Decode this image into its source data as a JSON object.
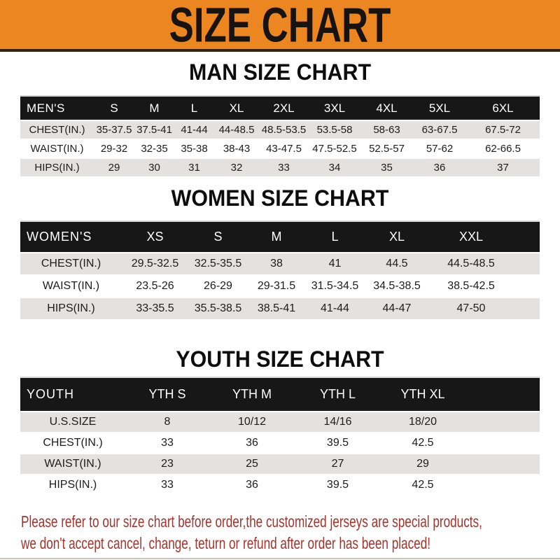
{
  "header": {
    "title": "SIZE CHART"
  },
  "colors": {
    "accent_orange": "#ec8621",
    "banner_border": "#33240f",
    "bar_black": "#171717",
    "row_gray": "#e3e2e0",
    "note_red": "#a5342c"
  },
  "sections": [
    {
      "title": "MAN SIZE CHART",
      "label": "MEN'S",
      "columns": [
        "S",
        "M",
        "L",
        "XL",
        "2XL",
        "3XL",
        "4XL",
        "5XL",
        "6XL"
      ],
      "rows": [
        {
          "label": "CHEST(IN.)",
          "values": [
            "35-37.5",
            "37.5-41",
            "41-44",
            "44-48.5",
            "48.5-53.5",
            "53.5-58",
            "58-63",
            "63-67.5",
            "67.5-72"
          ]
        },
        {
          "label": "WAIST(IN.)",
          "values": [
            "29-32",
            "32-35",
            "35-38",
            "38-43",
            "43-47.5",
            "47.5-52.5",
            "52.5-57",
            "57-62",
            "62-66.5"
          ]
        },
        {
          "label": "HIPS(IN.)",
          "values": [
            "29",
            "30",
            "31",
            "32",
            "33",
            "34",
            "35",
            "36",
            "37"
          ]
        }
      ]
    },
    {
      "title": "WOMEN SIZE CHART",
      "label": "WOMEN'S",
      "columns": [
        "XS",
        "S",
        "M",
        "L",
        "XL",
        "XXL"
      ],
      "rows": [
        {
          "label": "CHEST(IN.)",
          "values": [
            "29.5-32.5",
            "32.5-35.5",
            "38",
            "41",
            "44.5",
            "44.5-48.5"
          ]
        },
        {
          "label": "WAIST(IN.)",
          "values": [
            "23.5-26",
            "26-29",
            "29-31.5",
            "31.5-34.5",
            "34.5-38.5",
            "38.5-42.5"
          ]
        },
        {
          "label": "HIPS(IN.)",
          "values": [
            "33-35.5",
            "35.5-38.5",
            "38.5-41",
            "41-44",
            "44-47",
            "47-50"
          ]
        }
      ]
    },
    {
      "title": "YOUTH SIZE CHART",
      "label": "YOUTH",
      "columns": [
        "YTH S",
        "YTH M",
        "YTH L",
        "YTH XL"
      ],
      "rows": [
        {
          "label": "U.S.SIZE",
          "values": [
            "8",
            "10/12",
            "14/16",
            "18/20"
          ]
        },
        {
          "label": "CHEST(IN.)",
          "values": [
            "33",
            "36",
            "39.5",
            "42.5"
          ]
        },
        {
          "label": "WAIST(IN.)",
          "values": [
            "23",
            "25",
            "27",
            "29"
          ]
        },
        {
          "label": "HIPS(IN.)",
          "values": [
            "33",
            "36",
            "39.5",
            "42.5"
          ]
        }
      ]
    }
  ],
  "footer": {
    "line1": "Please refer to our size chart before order,the customized jerseys are special products,",
    "line2": "we don't accept cancel, change, teturn or refund after order has been placed!"
  }
}
